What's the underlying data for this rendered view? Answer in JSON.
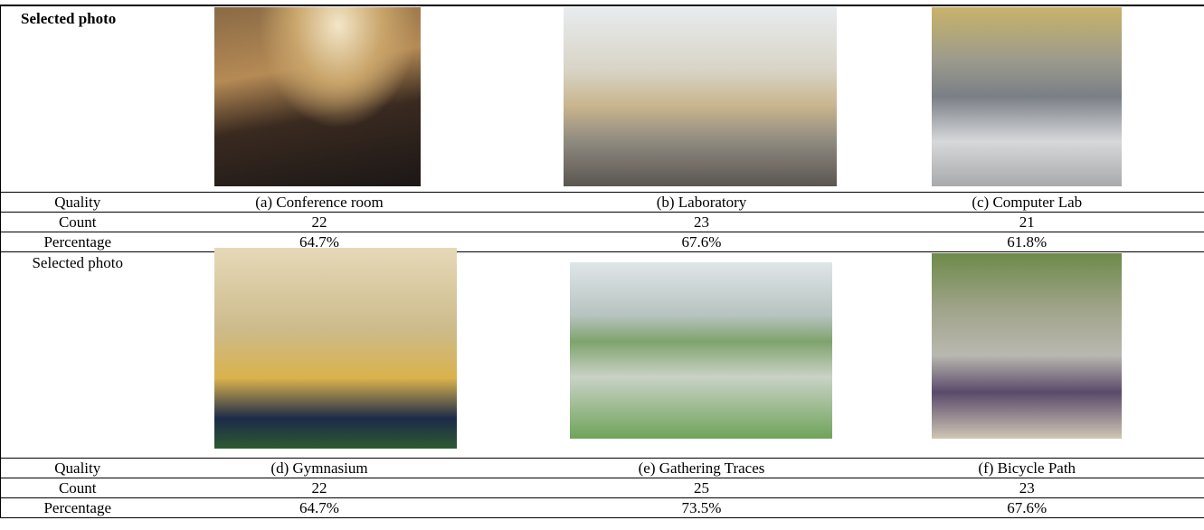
{
  "table": {
    "rows": [
      [
        "Selected photo"
      ],
      [
        "Quality",
        "(a) Conference room",
        "(b) Laboratory",
        "(c) Computer Lab"
      ],
      [
        "Count",
        22,
        23,
        21
      ],
      [
        "Percentage",
        "64.7%",
        "67.6%",
        "61.8%"
      ],
      [
        "Selected photo"
      ],
      [
        "Quality",
        "(d) Gymnasium",
        "(e) Gathering Traces",
        "(f) Bicycle Path"
      ],
      [
        "Count",
        22,
        25,
        23
      ],
      [
        "Percentage",
        "64.7%",
        "73.5%",
        "67.6%"
      ]
    ]
  }
}
